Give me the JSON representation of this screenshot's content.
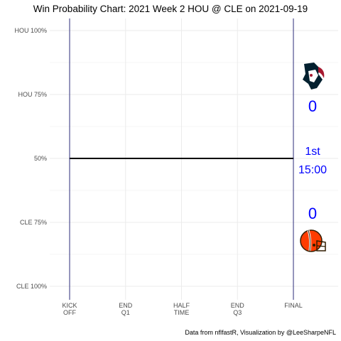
{
  "title": "Win Probability Chart: 2021 Week 2 HOU @ CLE on 2021-09-19",
  "caption": "Data from nflfastR, Visualization by @LeeSharpeNFL",
  "colors": {
    "wp_line": "#000000",
    "boundary_line": "#2b2b7a",
    "grid": "#ebebeb",
    "score_text": "#0000ff",
    "texans_navy": "#03202f",
    "texans_red": "#a71930",
    "browns_orange": "#ff3c00",
    "browns_brown": "#311d00"
  },
  "teams": {
    "away": {
      "abbr": "HOU",
      "score": "0",
      "logo_icon": "texans-logo-icon"
    },
    "home": {
      "abbr": "CLE",
      "score": "0",
      "logo_icon": "browns-logo-icon"
    }
  },
  "game_clock": {
    "quarter": "1st",
    "time": "15:00"
  },
  "chart_data": {
    "type": "line",
    "title": "Win Probability Chart: 2021 Week 2 HOU @ CLE on 2021-09-19",
    "xlabel": "",
    "ylabel": "",
    "x_ticks": [
      "KICK\nOFF",
      "END\nQ1",
      "HALF\nTIME",
      "END\nQ3",
      "FINAL"
    ],
    "x_tick_values": [
      0,
      15,
      30,
      45,
      60
    ],
    "xlim": [
      0,
      60
    ],
    "y_ticks": [
      "HOU 100%",
      "HOU 75%",
      "50%",
      "CLE 75%",
      "CLE 100%"
    ],
    "y_tick_values": [
      1.0,
      0.75,
      0.5,
      0.25,
      0.0
    ],
    "ylim": [
      0,
      1
    ],
    "grid": true,
    "series": [
      {
        "x": [
          0,
          60
        ],
        "y": [
          0.5,
          0.5
        ]
      }
    ]
  }
}
